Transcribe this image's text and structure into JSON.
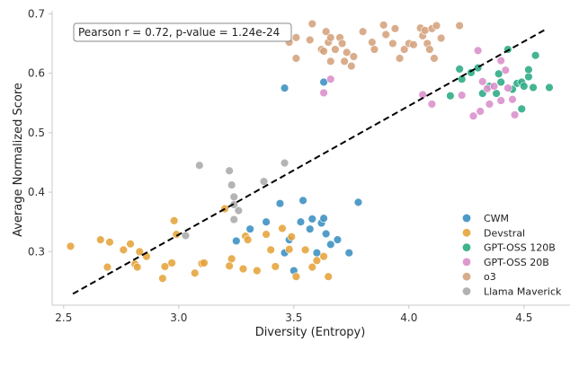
{
  "chart_data": {
    "type": "scatter",
    "title": "",
    "xlabel": "Diversity (Entropy)",
    "ylabel": "Average Normalized Score",
    "xlim": [
      2.45,
      4.7
    ],
    "ylim": [
      0.21,
      0.705
    ],
    "xticks": [
      2.5,
      3.0,
      3.5,
      4.0,
      4.5
    ],
    "yticks": [
      0.3,
      0.4,
      0.5,
      0.6,
      0.7
    ],
    "xtick_labels": [
      "2.5",
      "3.0",
      "3.5",
      "4.0",
      "4.5"
    ],
    "ytick_labels": [
      "0.3",
      "0.4",
      "0.5",
      "0.6",
      "0.7"
    ],
    "grid": false,
    "legend_position": "lower-right",
    "annotation": "Pearson r = 0.72, p-value = 1.24e-24",
    "trendline": {
      "style": "dashed",
      "color": "#000000",
      "x": [
        2.54,
        4.6
      ],
      "y": [
        0.229,
        0.675
      ]
    },
    "series": [
      {
        "name": "CWM",
        "color": "#3a8fc0",
        "points": [
          [
            3.46,
            0.575
          ],
          [
            3.63,
            0.585
          ],
          [
            3.25,
            0.318
          ],
          [
            3.31,
            0.338
          ],
          [
            3.38,
            0.35
          ],
          [
            3.44,
            0.381
          ],
          [
            3.46,
            0.298
          ],
          [
            3.48,
            0.32
          ],
          [
            3.5,
            0.268
          ],
          [
            3.53,
            0.35
          ],
          [
            3.54,
            0.386
          ],
          [
            3.57,
            0.338
          ],
          [
            3.58,
            0.355
          ],
          [
            3.6,
            0.298
          ],
          [
            3.62,
            0.348
          ],
          [
            3.63,
            0.356
          ],
          [
            3.64,
            0.33
          ],
          [
            3.66,
            0.312
          ],
          [
            3.69,
            0.32
          ],
          [
            3.74,
            0.298
          ],
          [
            3.78,
            0.383
          ]
        ]
      },
      {
        "name": "Devstral",
        "color": "#e5a33a",
        "points": [
          [
            2.53,
            0.309
          ],
          [
            2.66,
            0.32
          ],
          [
            2.69,
            0.274
          ],
          [
            2.7,
            0.316
          ],
          [
            2.76,
            0.303
          ],
          [
            2.79,
            0.313
          ],
          [
            2.81,
            0.279
          ],
          [
            2.82,
            0.274
          ],
          [
            2.83,
            0.3
          ],
          [
            2.86,
            0.292
          ],
          [
            2.93,
            0.255
          ],
          [
            2.94,
            0.275
          ],
          [
            2.97,
            0.281
          ],
          [
            2.98,
            0.352
          ],
          [
            2.99,
            0.329
          ],
          [
            3.07,
            0.264
          ],
          [
            3.1,
            0.28
          ],
          [
            3.11,
            0.281
          ],
          [
            3.2,
            0.372
          ],
          [
            3.22,
            0.276
          ],
          [
            3.23,
            0.288
          ],
          [
            3.28,
            0.271
          ],
          [
            3.29,
            0.326
          ],
          [
            3.3,
            0.32
          ],
          [
            3.34,
            0.268
          ],
          [
            3.38,
            0.329
          ],
          [
            3.4,
            0.303
          ],
          [
            3.42,
            0.275
          ],
          [
            3.45,
            0.339
          ],
          [
            3.48,
            0.304
          ],
          [
            3.49,
            0.325
          ],
          [
            3.51,
            0.258
          ],
          [
            3.55,
            0.303
          ],
          [
            3.58,
            0.274
          ],
          [
            3.6,
            0.285
          ],
          [
            3.63,
            0.292
          ],
          [
            3.65,
            0.258
          ]
        ]
      },
      {
        "name": "GPT-OSS 120B",
        "color": "#2aaa84",
        "points": [
          [
            4.18,
            0.562
          ],
          [
            4.22,
            0.607
          ],
          [
            4.23,
            0.59
          ],
          [
            4.27,
            0.601
          ],
          [
            4.3,
            0.609
          ],
          [
            4.32,
            0.566
          ],
          [
            4.35,
            0.578
          ],
          [
            4.38,
            0.566
          ],
          [
            4.39,
            0.599
          ],
          [
            4.4,
            0.585
          ],
          [
            4.43,
            0.64
          ],
          [
            4.45,
            0.573
          ],
          [
            4.47,
            0.583
          ],
          [
            4.49,
            0.54
          ],
          [
            4.49,
            0.585
          ],
          [
            4.5,
            0.578
          ],
          [
            4.52,
            0.594
          ],
          [
            4.52,
            0.606
          ],
          [
            4.54,
            0.576
          ],
          [
            4.55,
            0.63
          ],
          [
            4.61,
            0.576
          ]
        ]
      },
      {
        "name": "GPT-OSS 20B",
        "color": "#d98ec9",
        "points": [
          [
            3.63,
            0.567
          ],
          [
            3.66,
            0.59
          ],
          [
            4.06,
            0.564
          ],
          [
            4.1,
            0.548
          ],
          [
            4.23,
            0.563
          ],
          [
            4.28,
            0.528
          ],
          [
            4.3,
            0.638
          ],
          [
            4.31,
            0.536
          ],
          [
            4.32,
            0.586
          ],
          [
            4.34,
            0.574
          ],
          [
            4.35,
            0.548
          ],
          [
            4.37,
            0.578
          ],
          [
            4.4,
            0.621
          ],
          [
            4.4,
            0.554
          ],
          [
            4.42,
            0.605
          ],
          [
            4.43,
            0.575
          ],
          [
            4.45,
            0.556
          ],
          [
            4.46,
            0.53
          ]
        ]
      },
      {
        "name": "o3",
        "color": "#d4a27c",
        "points": [
          [
            3.48,
            0.652
          ],
          [
            3.51,
            0.66
          ],
          [
            3.51,
            0.625
          ],
          [
            3.57,
            0.656
          ],
          [
            3.58,
            0.683
          ],
          [
            3.62,
            0.64
          ],
          [
            3.63,
            0.637
          ],
          [
            3.64,
            0.67
          ],
          [
            3.65,
            0.652
          ],
          [
            3.66,
            0.66
          ],
          [
            3.66,
            0.62
          ],
          [
            3.68,
            0.64
          ],
          [
            3.7,
            0.66
          ],
          [
            3.71,
            0.65
          ],
          [
            3.72,
            0.62
          ],
          [
            3.73,
            0.635
          ],
          [
            3.75,
            0.612
          ],
          [
            3.76,
            0.628
          ],
          [
            3.8,
            0.67
          ],
          [
            3.84,
            0.652
          ],
          [
            3.85,
            0.64
          ],
          [
            3.89,
            0.681
          ],
          [
            3.9,
            0.665
          ],
          [
            3.93,
            0.65
          ],
          [
            3.94,
            0.675
          ],
          [
            3.96,
            0.625
          ],
          [
            3.98,
            0.64
          ],
          [
            4.0,
            0.65
          ],
          [
            4.02,
            0.648
          ],
          [
            4.05,
            0.676
          ],
          [
            4.06,
            0.663
          ],
          [
            4.07,
            0.672
          ],
          [
            4.08,
            0.65
          ],
          [
            4.09,
            0.64
          ],
          [
            4.1,
            0.675
          ],
          [
            4.11,
            0.625
          ],
          [
            4.12,
            0.68
          ],
          [
            4.14,
            0.659
          ],
          [
            4.22,
            0.68
          ]
        ]
      },
      {
        "name": "Llama Maverick",
        "color": "#aaaaaa",
        "points": [
          [
            3.03,
            0.327
          ],
          [
            3.09,
            0.445
          ],
          [
            3.22,
            0.436
          ],
          [
            3.23,
            0.412
          ],
          [
            3.24,
            0.392
          ],
          [
            3.24,
            0.379
          ],
          [
            3.24,
            0.354
          ],
          [
            3.26,
            0.369
          ],
          [
            3.37,
            0.418
          ],
          [
            3.46,
            0.449
          ]
        ]
      }
    ]
  }
}
